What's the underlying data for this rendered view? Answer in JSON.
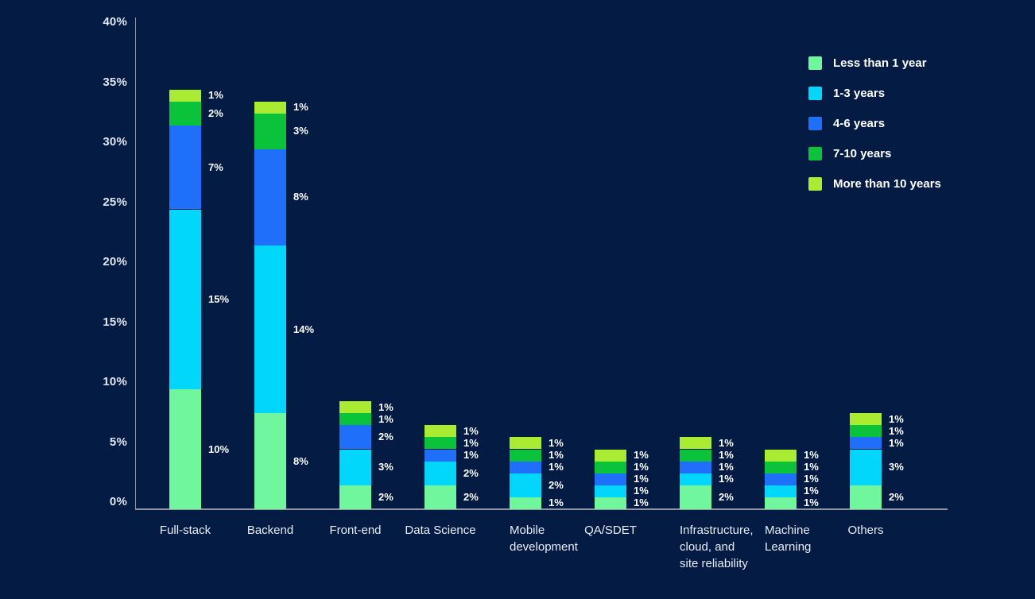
{
  "chart_data": {
    "type": "bar",
    "stacked": true,
    "title": "",
    "background": "#041C44",
    "axis_color": "#8C94A6",
    "categories": [
      "Full-stack",
      "Backend",
      "Front-end",
      "Data Science",
      "Mobile\ndevelopment",
      "QA/SDET",
      "Infrastructure,\ncloud, and\nsite reliability",
      "Machine\nLearning",
      "Others"
    ],
    "series": [
      {
        "name": "Less than 1 year",
        "color": "#70F79E",
        "values": [
          10,
          8,
          2,
          2,
          1,
          1,
          2,
          1,
          2
        ]
      },
      {
        "name": "1-3 years",
        "color": "#00D7FA",
        "values": [
          15,
          14,
          3,
          2,
          2,
          1,
          1,
          1,
          3
        ]
      },
      {
        "name": "4-6 years",
        "color": "#1F6FFA",
        "values": [
          7,
          8,
          2,
          1,
          1,
          1,
          1,
          1,
          1
        ]
      },
      {
        "name": "7-10 years",
        "color": "#0BC23B",
        "values": [
          2,
          3,
          1,
          1,
          1,
          1,
          1,
          1,
          1
        ]
      },
      {
        "name": "More than 10 years",
        "color": "#A9EC32",
        "values": [
          1,
          1,
          1,
          1,
          1,
          1,
          1,
          1,
          1
        ]
      }
    ],
    "value_label_suffix": "%",
    "y_axis": {
      "ticks": [
        "0%",
        "5%",
        "10%",
        "15%",
        "20%",
        "25%",
        "30%",
        "35%",
        "40%"
      ],
      "tick_values": [
        0,
        5,
        10,
        15,
        20,
        25,
        30,
        35,
        40
      ],
      "min": 0,
      "max": 40
    },
    "grid": false,
    "legend_position": "top-right"
  }
}
